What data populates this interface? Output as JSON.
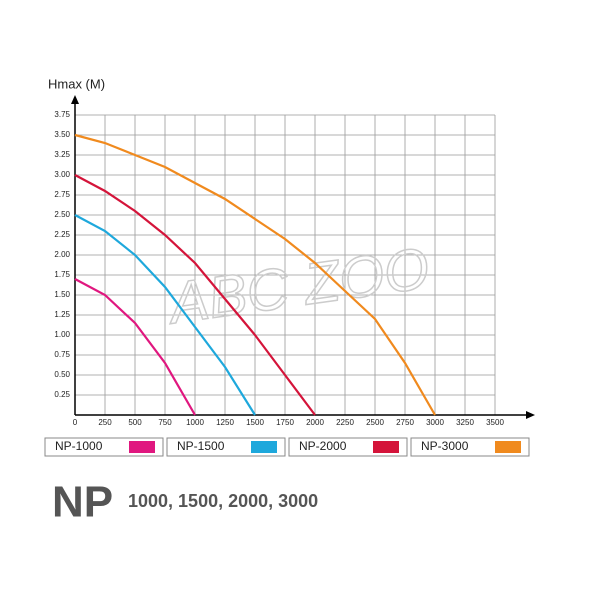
{
  "chart_data": {
    "type": "line",
    "y_label": "Hmax (M)",
    "xlim": [
      0,
      3500
    ],
    "xticks": [
      0,
      250,
      500,
      750,
      1000,
      1250,
      1500,
      1750,
      2000,
      2250,
      2500,
      2750,
      3000,
      3250,
      3500
    ],
    "ylim": [
      0,
      3.75
    ],
    "yticks": [
      {
        "value": 0.25,
        "label": "0.25"
      },
      {
        "value": 0.5,
        "label": "0.50"
      },
      {
        "value": 0.75,
        "label": "0.75"
      },
      {
        "value": 1,
        "label": "1.00"
      },
      {
        "value": 1.25,
        "label": "1.25"
      },
      {
        "value": 1.5,
        "label": "1.50"
      },
      {
        "value": 1.75,
        "label": "1.75"
      },
      {
        "value": 2,
        "label": "2.00"
      },
      {
        "value": 2.25,
        "label": "2.25"
      },
      {
        "value": 2.5,
        "label": "2.50"
      },
      {
        "value": 2.75,
        "label": "2.75"
      },
      {
        "value": 3,
        "label": "3.00"
      },
      {
        "value": 3.25,
        "label": "3.25"
      },
      {
        "value": 3.5,
        "label": "3.50"
      },
      {
        "value": 3.75,
        "label": "3.75"
      }
    ],
    "grid": true,
    "series": [
      {
        "name": "NP-1000",
        "color": "#e0177f",
        "x": [
          0,
          250,
          500,
          750,
          1000
        ],
        "values": [
          1.7,
          1.5,
          1.15,
          0.65,
          0
        ]
      },
      {
        "name": "NP-1500",
        "color": "#1ea8dc",
        "x": [
          0,
          250,
          500,
          750,
          1000,
          1250,
          1500
        ],
        "values": [
          2.5,
          2.3,
          2.0,
          1.6,
          1.1,
          0.6,
          0
        ]
      },
      {
        "name": "NP-2000",
        "color": "#d4143a",
        "x": [
          0,
          250,
          500,
          750,
          1000,
          1250,
          1500,
          1750,
          2000
        ],
        "values": [
          3.0,
          2.8,
          2.55,
          2.25,
          1.9,
          1.45,
          1.0,
          0.5,
          0
        ]
      },
      {
        "name": "NP-3000",
        "color": "#f08a1e",
        "x": [
          0,
          250,
          500,
          750,
          1000,
          1250,
          1500,
          1750,
          2000,
          2250,
          2500,
          2750,
          3000
        ],
        "values": [
          3.5,
          3.4,
          3.25,
          3.1,
          2.9,
          2.7,
          2.45,
          2.2,
          1.9,
          1.55,
          1.2,
          0.65,
          0
        ]
      }
    ],
    "annotations": [
      "ABC ZOO"
    ]
  },
  "footer": {
    "title": "NP",
    "models": "1000, 1500, 2000, 3000"
  }
}
